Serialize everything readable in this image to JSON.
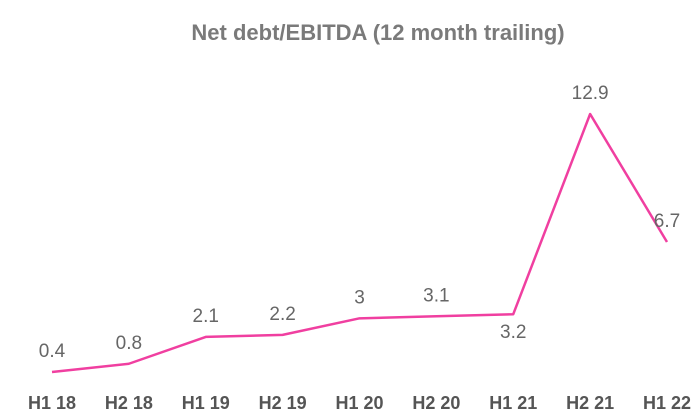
{
  "chart_data": {
    "type": "line",
    "title": "Net debt/EBITDA (12 month trailing)",
    "categories": [
      "H1 18",
      "H2 18",
      "H1 19",
      "H2 19",
      "H1 20",
      "H2 20",
      "H1 21",
      "H2 21",
      "H1 22"
    ],
    "series": [
      {
        "name": "Net debt/EBITDA",
        "color": "#f03fa0",
        "values": [
          0.4,
          0.8,
          2.1,
          2.2,
          3.0,
          3.1,
          3.2,
          12.9,
          6.7
        ]
      }
    ]
  }
}
